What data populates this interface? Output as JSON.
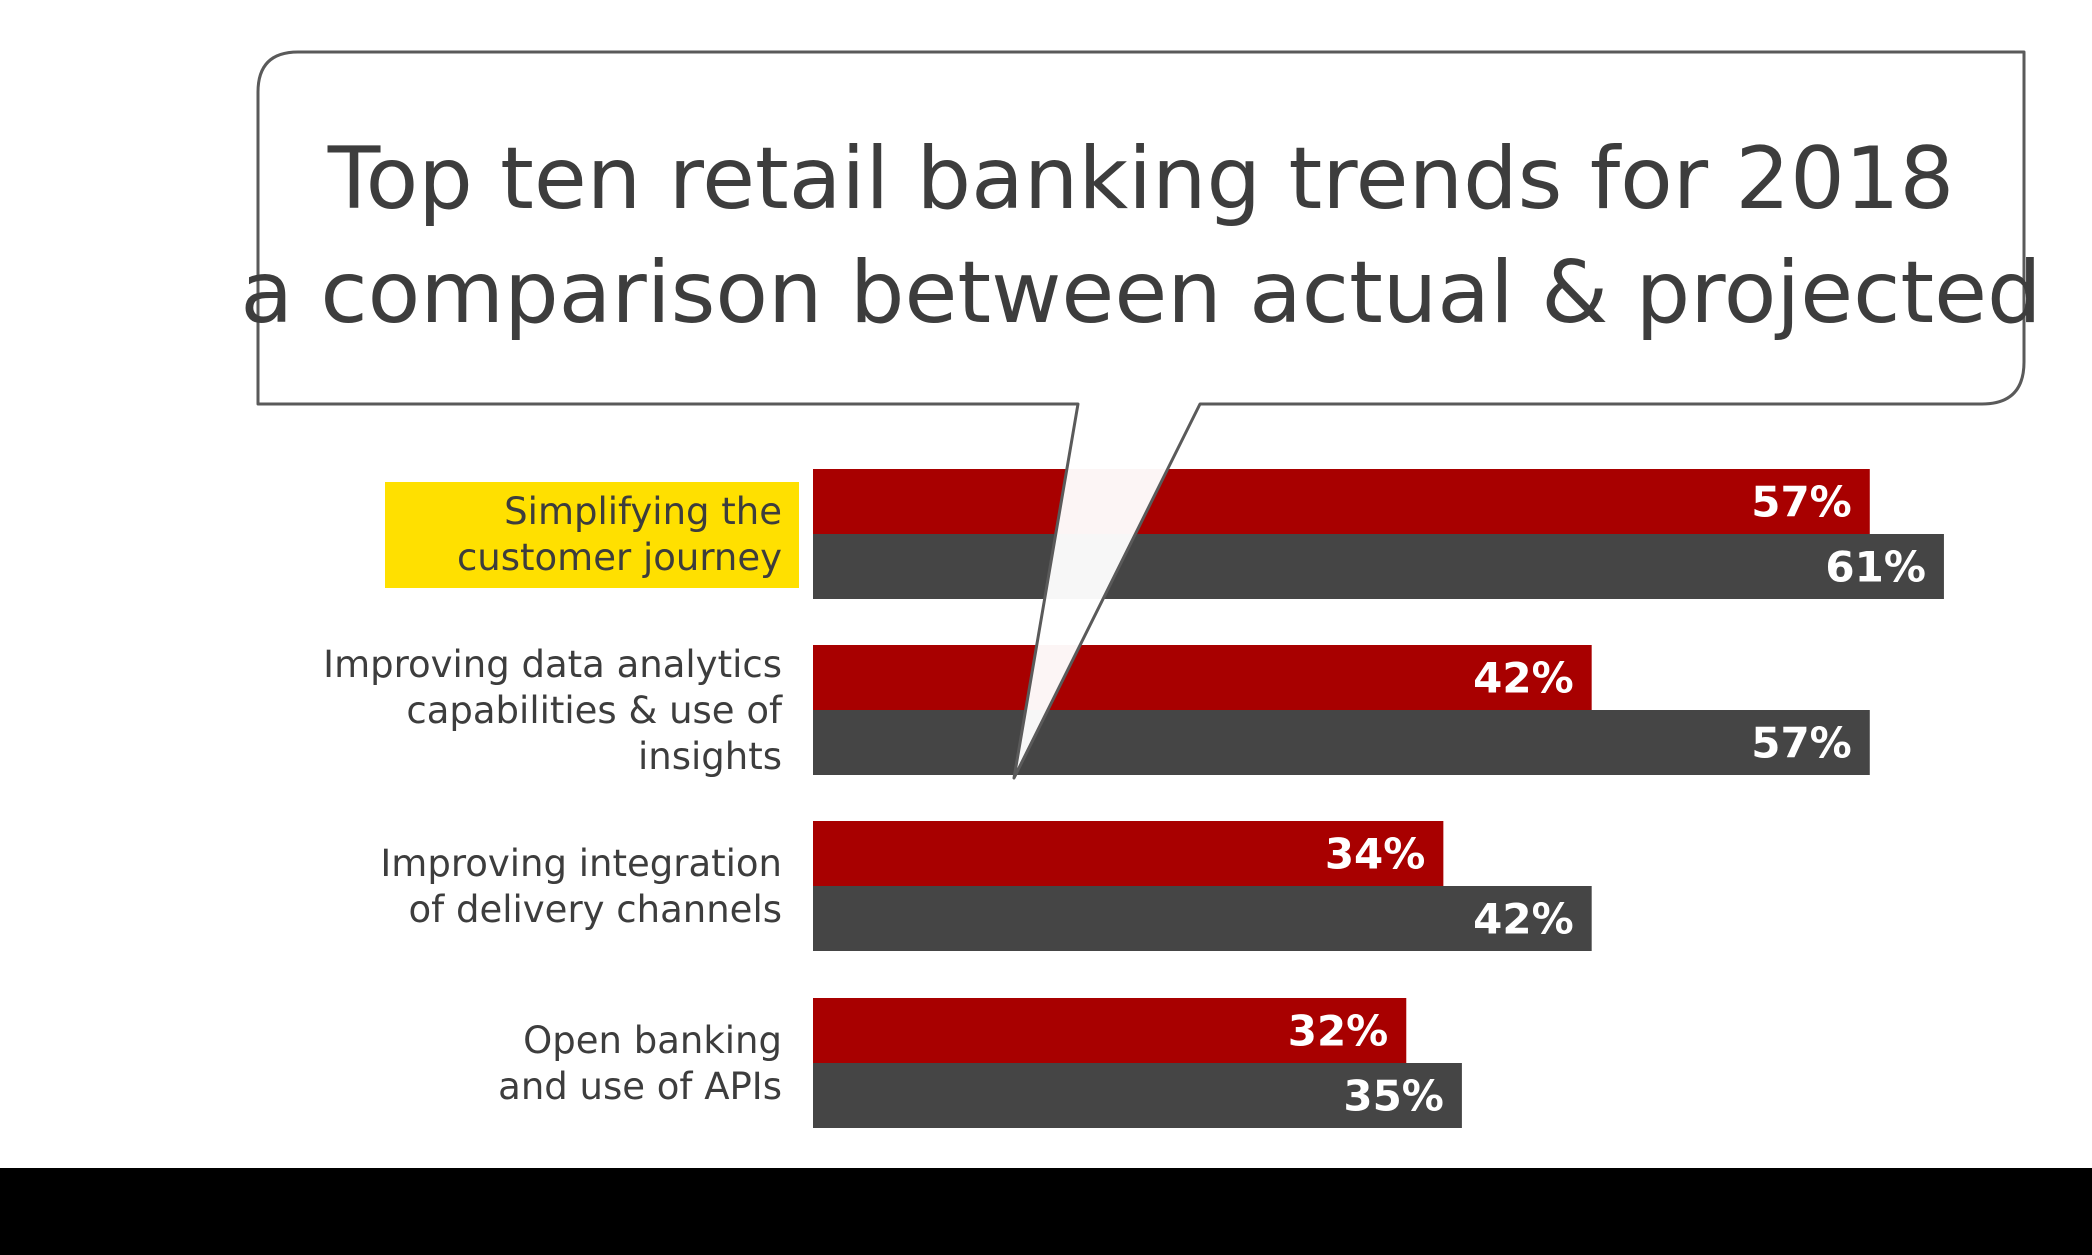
{
  "chart_data": {
    "type": "bar",
    "orientation": "horizontal",
    "title": [
      "Top ten retail banking trends for 2018",
      "a comparison between actual & projected"
    ],
    "categories": [
      "Simplifying the customer journey",
      "Improving data analytics capabilities & use of insights",
      "Improving integration of delivery channels",
      "Open banking and use of APIs"
    ],
    "category_label_lines": [
      [
        "Simplifying the",
        "customer journey"
      ],
      [
        "Improving data analytics",
        "capabilities & use of",
        "insights"
      ],
      [
        "Improving integration",
        "of delivery channels"
      ],
      [
        "Open banking",
        "and use of APIs"
      ]
    ],
    "highlighted_category": 0,
    "series": [
      {
        "values": [
          57,
          42,
          34,
          32
        ],
        "color": "#A80000"
      },
      {
        "values": [
          61,
          57,
          42,
          35
        ],
        "color": "#454545"
      }
    ],
    "value_labels": [
      [
        "57%",
        "42%",
        "34%",
        "32%"
      ],
      [
        "61%",
        "57%",
        "42%",
        "35%"
      ]
    ],
    "value_format": "percent",
    "grid": false,
    "legend": "none"
  },
  "colors": {
    "actual_bar": "#A80000",
    "projected_bar": "#454545",
    "highlight": "#FFE000",
    "text": "#3d3d3d",
    "bubble_stroke": "#5a5a5a",
    "bottom_band": "#000000"
  }
}
